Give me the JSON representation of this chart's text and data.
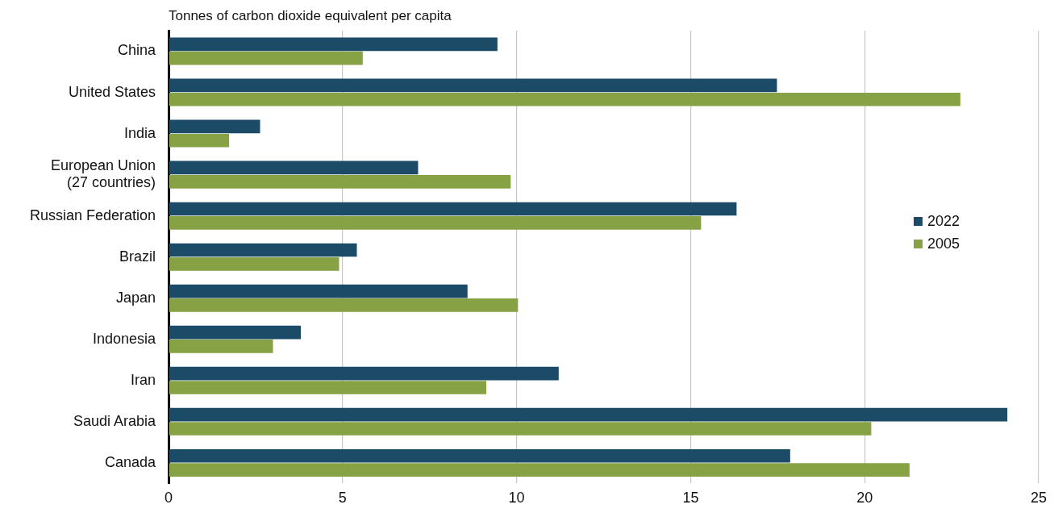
{
  "chart_data": {
    "type": "bar",
    "orientation": "horizontal",
    "title": "Tonnes of carbon dioxide equivalent per capita",
    "categories": [
      "China",
      "United States",
      "India",
      "European Union (27 countries)",
      "Russian Federation",
      "Brazil",
      "Japan",
      "Indonesia",
      "Iran",
      "Saudi Arabia",
      "Canada"
    ],
    "series": [
      {
        "name": "2022",
        "color": "#1b4b66",
        "values": [
          9.45,
          17.48,
          2.63,
          7.17,
          16.32,
          5.41,
          8.59,
          3.8,
          11.21,
          24.1,
          17.86
        ]
      },
      {
        "name": "2005",
        "color": "#87a244",
        "values": [
          5.58,
          22.75,
          1.74,
          9.83,
          15.3,
          4.9,
          10.04,
          3.0,
          9.13,
          20.19,
          21.29
        ]
      }
    ],
    "xlim": [
      0,
      25
    ],
    "xticks": [
      0,
      5,
      10,
      15,
      20,
      25
    ],
    "grid": "x",
    "legend": "right"
  }
}
